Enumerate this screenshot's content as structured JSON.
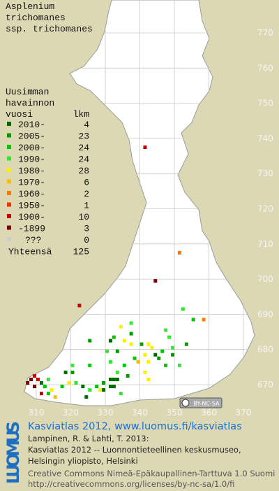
{
  "species": [
    "Asplenium",
    "trichomanes",
    "ssp. trichomanes"
  ],
  "legend": {
    "title": [
      "Uusimman",
      "havainnon",
      "vuosi"
    ],
    "count_header": "lkm",
    "items": [
      {
        "label": "2010-",
        "count": "4",
        "color": "#006a00"
      },
      {
        "label": "2005-",
        "count": "23",
        "color": "#009a00"
      },
      {
        "label": "2000-",
        "count": "24",
        "color": "#00c800"
      },
      {
        "label": "1990-",
        "count": "24",
        "color": "#33e633"
      },
      {
        "label": "1980-",
        "count": "28",
        "color": "#ffee00"
      },
      {
        "label": "1970-",
        "count": "6",
        "color": "#ffbb00"
      },
      {
        "label": "1960-",
        "count": "2",
        "color": "#ff7700"
      },
      {
        "label": "1950-",
        "count": "1",
        "color": "#ee3300"
      },
      {
        "label": "1900-",
        "count": "10",
        "color": "#c80000"
      },
      {
        "label": "-1899",
        "count": "3",
        "color": "#7a0000"
      },
      {
        "label": "???",
        "count": "0",
        "color": "#cccccc"
      }
    ],
    "total_label": "Yhteensä",
    "total": "125"
  },
  "grid": {
    "xlim": [
      304,
      372
    ],
    "ylim": [
      661,
      780
    ],
    "xticks": [
      310,
      320,
      330,
      340,
      350,
      360,
      370
    ],
    "yticks": [
      770,
      760,
      750,
      740,
      730,
      720,
      710,
      700,
      690,
      680,
      670
    ]
  },
  "squares": [
    [
      341,
      737,
      8
    ],
    [
      351,
      707,
      6
    ],
    [
      344,
      699,
      9
    ],
    [
      322,
      692,
      8
    ],
    [
      352,
      691,
      3
    ],
    [
      355,
      688,
      2
    ],
    [
      358,
      688,
      6
    ],
    [
      353,
      681,
      1
    ],
    [
      347,
      685,
      3
    ],
    [
      337,
      687,
      3
    ],
    [
      334,
      686,
      4
    ],
    [
      337,
      684,
      1
    ],
    [
      332,
      683,
      2
    ],
    [
      331,
      682,
      0
    ],
    [
      335,
      682,
      4
    ],
    [
      337,
      681,
      4
    ],
    [
      340,
      681,
      1
    ],
    [
      342,
      681,
      4
    ],
    [
      343,
      680,
      4
    ],
    [
      344,
      678,
      0
    ],
    [
      346,
      679,
      2
    ],
    [
      349,
      680,
      3
    ],
    [
      341,
      678,
      4
    ],
    [
      338,
      677,
      2
    ],
    [
      333,
      679,
      1
    ],
    [
      331,
      676,
      3
    ],
    [
      325,
      682,
      1
    ],
    [
      339,
      676,
      5
    ],
    [
      342,
      676,
      4
    ],
    [
      345,
      677,
      1
    ],
    [
      347,
      675,
      2
    ],
    [
      349,
      678,
      1
    ],
    [
      351,
      675,
      3
    ],
    [
      341,
      673,
      4
    ],
    [
      342,
      671,
      4
    ],
    [
      335,
      675,
      2
    ],
    [
      336,
      672,
      1
    ],
    [
      333,
      673,
      3
    ],
    [
      331,
      671,
      0
    ],
    [
      332,
      671,
      0
    ],
    [
      333,
      671,
      0
    ],
    [
      331,
      669,
      0
    ],
    [
      329,
      670,
      1
    ],
    [
      332,
      669,
      0
    ],
    [
      327,
      669,
      2
    ],
    [
      329,
      668,
      0
    ],
    [
      328,
      668,
      4
    ],
    [
      334,
      667,
      3
    ],
    [
      325,
      668,
      3
    ],
    [
      323,
      669,
      0
    ],
    [
      321,
      670,
      3
    ],
    [
      319,
      670,
      4
    ],
    [
      318,
      673,
      0
    ],
    [
      317,
      669,
      2
    ],
    [
      320,
      673,
      1
    ],
    [
      324,
      666,
      0
    ],
    [
      315,
      666,
      5
    ],
    [
      313,
      667,
      2
    ],
    [
      311,
      667,
      8
    ],
    [
      309,
      669,
      9
    ],
    [
      308,
      671,
      9
    ],
    [
      310,
      671,
      8
    ],
    [
      311,
      670,
      0
    ],
    [
      312,
      669,
      2
    ],
    [
      307,
      670,
      9
    ],
    [
      309,
      672,
      8
    ],
    [
      313,
      671,
      3
    ],
    [
      314,
      668,
      4
    ],
    [
      325,
      675,
      2
    ],
    [
      320,
      675,
      3
    ],
    [
      348,
      683,
      3
    ],
    [
      330,
      679,
      3
    ]
  ],
  "license_badge": "BY-NC-SA",
  "logo": "LUOMUS",
  "footer": {
    "link": "Kasviatlas 2012, www.luomus.fi/kasviatlas",
    "citation": [
      "Lampinen, R. & Lahti, T. 2013:",
      "Kasviatlas 2012 -- Luonnontieteellinen keskusmuseo,",
      "Helsingin yliopisto, Helsinki"
    ],
    "license": [
      "Creative Commons Nimeä-Epäkaupallinen-Tarttuva 1.0 Suomi",
      "http://creativecommons.org/licenses/by-nc-sa/1.0/fi"
    ]
  }
}
